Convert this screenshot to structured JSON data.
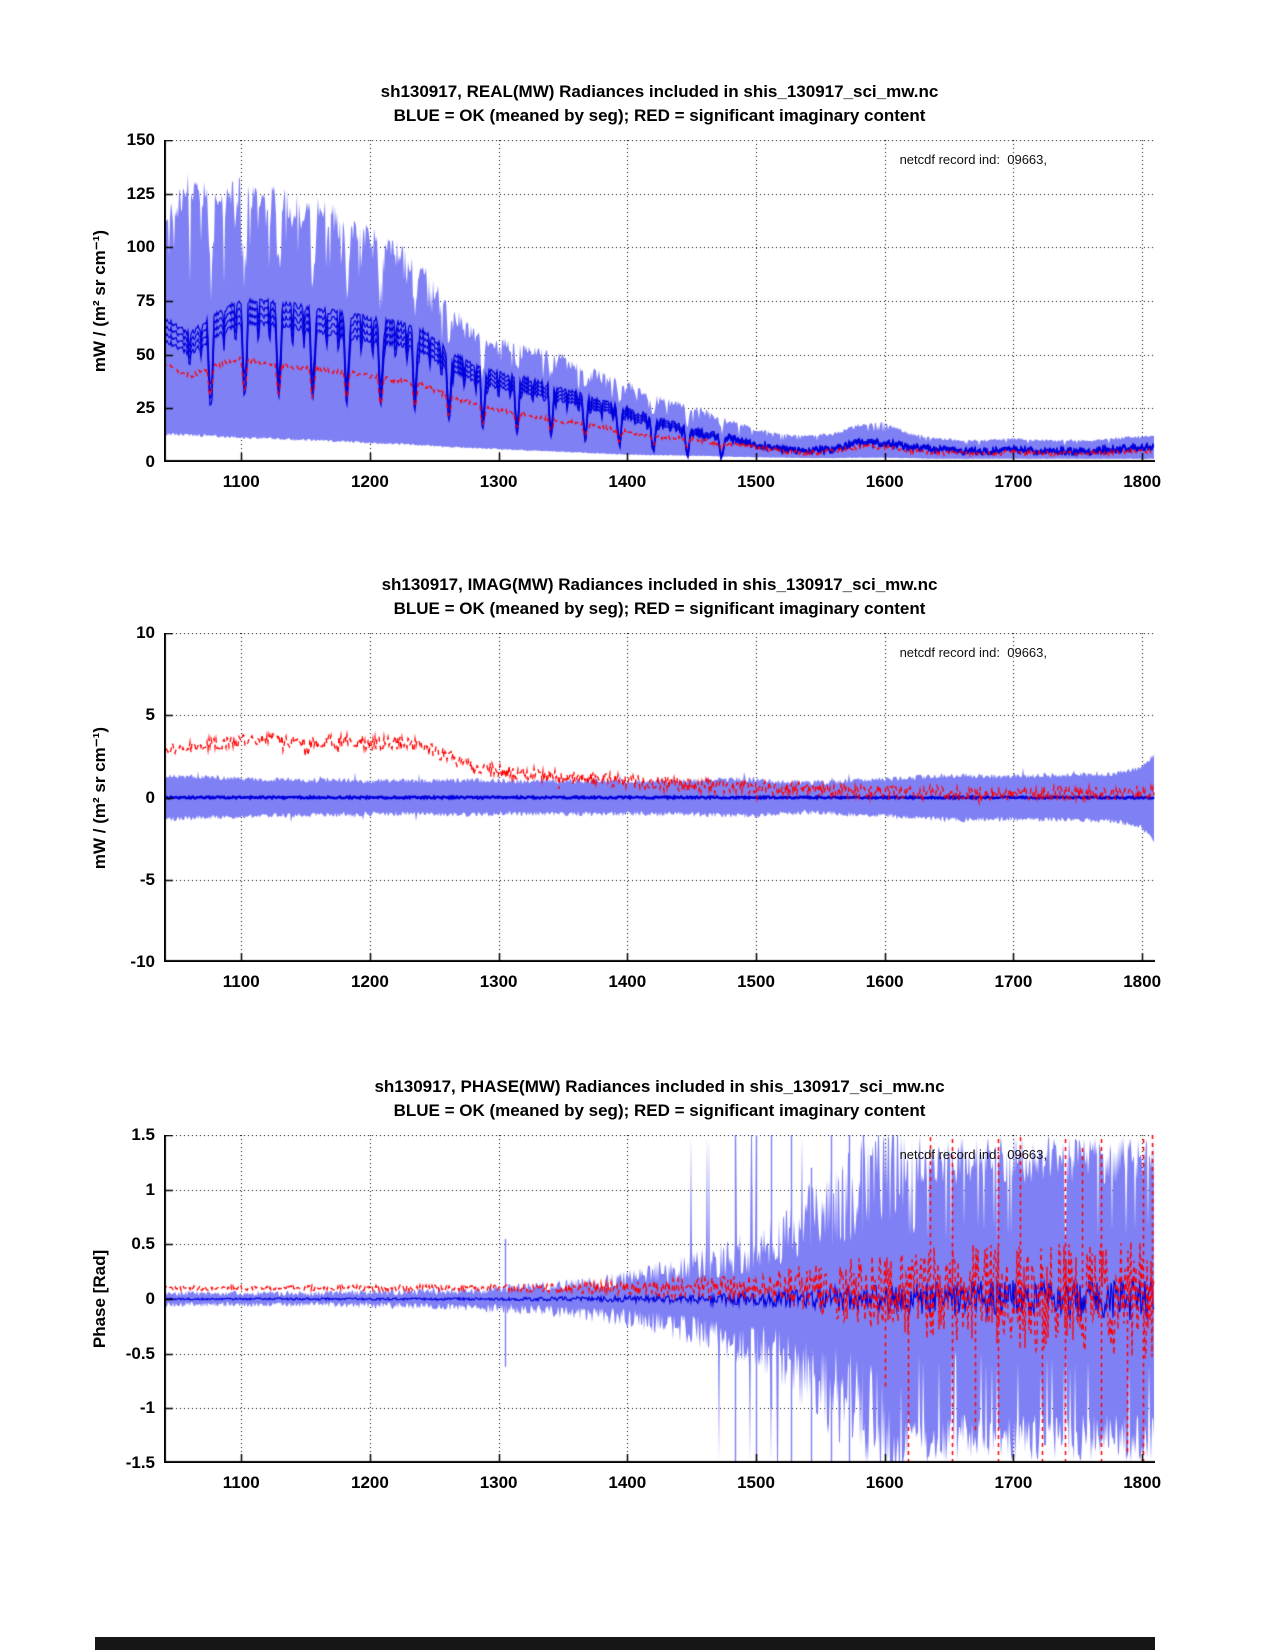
{
  "figure": {
    "background": "#ffffff",
    "colors": {
      "envelope": "#8080f5",
      "mean_line": "#0000dd",
      "flagged_line": "#ff0000",
      "axis": "#000000",
      "grid": "#000000",
      "annotation_text": "#111111"
    }
  },
  "chart_data": [
    {
      "id": "real",
      "type": "line",
      "title": "sh130917, REAL(MW) Radiances included in shis_130917_sci_mw.nc",
      "subtitle": "BLUE = OK (meaned by seg); RED = significant imaginary content",
      "annotation": "netcdf record ind:  09663,",
      "xlabel": "",
      "ylabel": "mW / (m² sr cm⁻¹)",
      "xlim": [
        1040,
        1810
      ],
      "ylim": [
        0,
        150
      ],
      "xticks": [
        1100,
        1200,
        1300,
        1400,
        1500,
        1600,
        1700,
        1800
      ],
      "xtick_labels": [
        "1100",
        "1200",
        "1300",
        "1400",
        "1500",
        "1600",
        "1700",
        "1800"
      ],
      "yticks": [
        0,
        25,
        50,
        75,
        100,
        125,
        150
      ],
      "ytick_labels": [
        "0",
        "25",
        "50",
        "75",
        "100",
        "125",
        "150"
      ],
      "grid": true,
      "legend": "none",
      "x": [
        1040,
        1060,
        1080,
        1100,
        1120,
        1140,
        1160,
        1180,
        1200,
        1220,
        1240,
        1260,
        1280,
        1300,
        1320,
        1340,
        1360,
        1380,
        1400,
        1420,
        1440,
        1460,
        1480,
        1500,
        1520,
        1540,
        1560,
        1580,
        1600,
        1620,
        1640,
        1660,
        1680,
        1700,
        1720,
        1740,
        1760,
        1780,
        1800,
        1810
      ],
      "series": [
        {
          "name": "envelope upper (OK spectra, blue)",
          "role": "envelope_upper",
          "values": [
            112,
            128,
            122,
            126,
            123,
            119,
            117,
            112,
            104,
            98,
            90,
            72,
            60,
            55,
            53,
            50,
            45,
            40,
            36,
            30,
            27,
            24,
            19,
            15,
            13,
            12,
            13,
            17,
            18,
            13,
            11,
            10,
            10,
            11,
            10,
            10,
            10,
            11,
            12,
            12
          ]
        },
        {
          "name": "envelope lower (OK spectra, blue)",
          "role": "envelope_lower",
          "values": [
            13,
            12.5,
            12,
            11.5,
            11,
            10.5,
            10,
            9.5,
            9,
            8.5,
            8,
            7,
            6.5,
            6,
            5.5,
            5,
            4.5,
            4,
            3.5,
            3.2,
            3,
            2.8,
            2.5,
            2.2,
            2,
            1.8,
            1.8,
            2,
            2,
            1.8,
            1.5,
            1.5,
            1.5,
            1.5,
            1.5,
            1.5,
            1.5,
            1.5,
            1.5,
            1.5
          ]
        },
        {
          "name": "segment means (BLUE = OK)",
          "role": "mean",
          "values": [
            62,
            55,
            64,
            70,
            70,
            68,
            66,
            64,
            62,
            60,
            57,
            48,
            42,
            38,
            36,
            33,
            30,
            26,
            23,
            19,
            16,
            13,
            11,
            8,
            6,
            5,
            6,
            9,
            9,
            7,
            6,
            5,
            5,
            6,
            5,
            5,
            5,
            6,
            7,
            7
          ]
        },
        {
          "name": "flagged spectra (RED = significant imaginary content)",
          "role": "flagged",
          "values": [
            46,
            40,
            45,
            48,
            46,
            44,
            43,
            42,
            40,
            38,
            36,
            31,
            27,
            24,
            22,
            20,
            18,
            16,
            14,
            12,
            11,
            10,
            8,
            7,
            5,
            4,
            5,
            7,
            7,
            5,
            4.5,
            4,
            4,
            4.5,
            4,
            4,
            4,
            4.5,
            5,
            5
          ]
        }
      ],
      "render": {
        "seed": 11,
        "env_noise": 0.06,
        "notches": true,
        "mean_traces": 4,
        "trace_spread": 10,
        "mean_noise": 1.3,
        "red_noise": 1.1
      }
    },
    {
      "id": "imag",
      "type": "line",
      "title": "sh130917, IMAG(MW) Radiances included in shis_130917_sci_mw.nc",
      "subtitle": "BLUE = OK (meaned by seg); RED = significant imaginary content",
      "annotation": "netcdf record ind:  09663,",
      "xlabel": "",
      "ylabel": "mW / (m² sr cm⁻¹)",
      "xlim": [
        1040,
        1810
      ],
      "ylim": [
        -10,
        10
      ],
      "xticks": [
        1100,
        1200,
        1300,
        1400,
        1500,
        1600,
        1700,
        1800
      ],
      "xtick_labels": [
        "1100",
        "1200",
        "1300",
        "1400",
        "1500",
        "1600",
        "1700",
        "1800"
      ],
      "yticks": [
        -10,
        -5,
        0,
        5,
        10
      ],
      "ytick_labels": [
        "-10",
        "-5",
        "0",
        "5",
        "10"
      ],
      "grid": true,
      "legend": "none",
      "x": [
        1040,
        1060,
        1080,
        1100,
        1120,
        1140,
        1160,
        1180,
        1200,
        1220,
        1240,
        1260,
        1280,
        1300,
        1320,
        1340,
        1360,
        1380,
        1400,
        1420,
        1440,
        1460,
        1480,
        1500,
        1520,
        1540,
        1560,
        1580,
        1600,
        1620,
        1640,
        1660,
        1680,
        1700,
        1720,
        1740,
        1760,
        1780,
        1800,
        1810
      ],
      "series": [
        {
          "name": "envelope upper (OK spectra, blue)",
          "role": "envelope_upper",
          "values": [
            1.35,
            1.25,
            1.2,
            1.15,
            1.1,
            1.1,
            1.05,
            1.05,
            1.0,
            1.0,
            1.0,
            1.05,
            1.05,
            1.0,
            1.0,
            1.0,
            1.0,
            1.0,
            1.0,
            1.0,
            1.0,
            1.05,
            1.1,
            1.1,
            0.95,
            0.9,
            0.95,
            1.05,
            1.1,
            1.2,
            1.3,
            1.35,
            1.3,
            1.3,
            1.35,
            1.35,
            1.4,
            1.45,
            1.8,
            2.6
          ]
        },
        {
          "name": "envelope lower (OK spectra, blue)",
          "role": "envelope_lower",
          "values": [
            -1.35,
            -1.25,
            -1.2,
            -1.15,
            -1.1,
            -1.1,
            -1.05,
            -1.05,
            -1.0,
            -1.0,
            -1.0,
            -1.05,
            -1.05,
            -1.0,
            -1.0,
            -1.0,
            -1.0,
            -1.0,
            -1.0,
            -1.0,
            -1.0,
            -1.05,
            -1.1,
            -1.1,
            -0.95,
            -0.9,
            -0.95,
            -1.05,
            -1.1,
            -1.2,
            -1.3,
            -1.35,
            -1.3,
            -1.3,
            -1.35,
            -1.35,
            -1.4,
            -1.45,
            -1.8,
            -2.6
          ]
        },
        {
          "name": "segment means (BLUE = OK)",
          "role": "mean",
          "values": [
            0,
            0,
            0,
            0,
            0,
            0,
            0,
            0,
            0,
            0,
            0,
            0,
            0,
            0,
            0,
            0,
            0,
            0,
            0,
            0,
            0,
            0,
            0,
            0,
            0,
            0,
            0,
            0,
            0,
            0,
            0,
            0,
            0,
            0,
            0,
            0,
            0,
            0,
            0,
            0
          ]
        },
        {
          "name": "flagged spectra (RED = significant imaginary content)",
          "role": "flagged",
          "values": [
            2.9,
            3.1,
            3.3,
            3.4,
            3.5,
            3.4,
            3.3,
            3.45,
            3.3,
            3.35,
            3.1,
            2.5,
            1.9,
            1.6,
            1.45,
            1.3,
            1.2,
            1.1,
            1.0,
            0.9,
            0.8,
            0.7,
            0.65,
            0.6,
            0.55,
            0.5,
            0.45,
            0.4,
            0.35,
            0.3,
            0.3,
            0.25,
            0.25,
            0.25,
            0.3,
            0.25,
            0.25,
            0.3,
            0.3,
            0.3
          ]
        }
      ],
      "render": {
        "seed": 22,
        "env_noise": 0.16,
        "mean_noise": 0.06,
        "red_noise": 0.42
      }
    },
    {
      "id": "phase",
      "type": "line",
      "title": "sh130917, PHASE(MW) Radiances included in shis_130917_sci_mw.nc",
      "subtitle": "BLUE = OK (meaned by seg); RED = significant imaginary content",
      "annotation": "netcdf record ind:  09663,",
      "xlabel": "",
      "ylabel": "Phase [Rad]",
      "xlim": [
        1040,
        1810
      ],
      "ylim": [
        -1.5,
        1.5
      ],
      "xticks": [
        1100,
        1200,
        1300,
        1400,
        1500,
        1600,
        1700,
        1800
      ],
      "xtick_labels": [
        "1100",
        "1200",
        "1300",
        "1400",
        "1500",
        "1600",
        "1700",
        "1800"
      ],
      "yticks": [
        -1.5,
        -1,
        -0.5,
        0,
        0.5,
        1,
        1.5
      ],
      "ytick_labels": [
        "-1.5",
        "-1",
        "-0.5",
        "0",
        "0.5",
        "1",
        "1.5"
      ],
      "grid": true,
      "legend": "none",
      "x": [
        1040,
        1060,
        1080,
        1100,
        1120,
        1140,
        1160,
        1180,
        1200,
        1220,
        1240,
        1260,
        1280,
        1300,
        1320,
        1340,
        1360,
        1380,
        1400,
        1420,
        1440,
        1460,
        1480,
        1500,
        1520,
        1540,
        1560,
        1580,
        1600,
        1620,
        1640,
        1660,
        1680,
        1700,
        1720,
        1740,
        1760,
        1780,
        1800,
        1810
      ],
      "series": [
        {
          "name": "envelope upper (OK spectra, blue)",
          "role": "envelope_upper",
          "values": [
            0.05,
            0.05,
            0.05,
            0.05,
            0.05,
            0.05,
            0.05,
            0.06,
            0.06,
            0.06,
            0.07,
            0.07,
            0.08,
            0.09,
            0.1,
            0.11,
            0.13,
            0.15,
            0.18,
            0.22,
            0.26,
            0.32,
            0.38,
            0.45,
            0.55,
            0.7,
            0.85,
            1.0,
            1.3,
            1.5,
            1.5,
            1.5,
            1.5,
            1.5,
            1.5,
            1.5,
            1.5,
            1.5,
            1.5,
            1.5
          ]
        },
        {
          "name": "envelope lower (OK spectra, blue)",
          "role": "envelope_lower",
          "values": [
            -0.05,
            -0.05,
            -0.05,
            -0.05,
            -0.05,
            -0.05,
            -0.05,
            -0.06,
            -0.06,
            -0.06,
            -0.07,
            -0.07,
            -0.08,
            -0.09,
            -0.1,
            -0.11,
            -0.13,
            -0.15,
            -0.18,
            -0.22,
            -0.26,
            -0.32,
            -0.38,
            -0.45,
            -0.55,
            -0.7,
            -0.85,
            -1.0,
            -1.3,
            -1.5,
            -1.5,
            -1.5,
            -1.5,
            -1.5,
            -1.5,
            -1.5,
            -1.5,
            -1.5,
            -1.5,
            -1.5
          ]
        },
        {
          "name": "segment means (BLUE = OK)",
          "role": "mean",
          "values": [
            0,
            0,
            0,
            0,
            0,
            0,
            0,
            0,
            0,
            0,
            0,
            0,
            0,
            0,
            0,
            0,
            0,
            0,
            0,
            0,
            0,
            0,
            0,
            0,
            0,
            0,
            0,
            0,
            0,
            0,
            0,
            0,
            0,
            0,
            0,
            0,
            0,
            0,
            0,
            0
          ]
        },
        {
          "name": "flagged spectra (RED = significant imaginary content)",
          "role": "flagged",
          "values": [
            0.1,
            0.1,
            0.1,
            0.1,
            0.1,
            0.1,
            0.1,
            0.1,
            0.1,
            0.1,
            0.1,
            0.1,
            0.1,
            0.1,
            0.1,
            0.1,
            0.1,
            0.1,
            0.1,
            0.1,
            0.1,
            0.1,
            0.1,
            0.1,
            0.1,
            0.1,
            0.08,
            0.08,
            0.05,
            0.05,
            0.05,
            0.05,
            0.05,
            0,
            0,
            0,
            0,
            0,
            0,
            0
          ]
        }
      ],
      "spikes_blue": [
        {
          "x": 1305,
          "y1": -0.62,
          "y2": 0.55
        },
        {
          "x": 1484,
          "y1": -1.5,
          "y2": 1.5
        },
        {
          "x": 1500,
          "y1": -1.5,
          "y2": 1.5
        },
        {
          "x": 1512,
          "y1": -1.0,
          "y2": 1.5
        },
        {
          "x": 1527,
          "y1": -1.5,
          "y2": 1.5
        },
        {
          "x": 1543,
          "y1": -1.5,
          "y2": 1.2
        },
        {
          "x": 1558,
          "y1": -1.5,
          "y2": 1.5
        },
        {
          "x": 1572,
          "y1": -1.5,
          "y2": 1.5
        },
        {
          "x": 1583,
          "y1": -1.2,
          "y2": 1.5
        }
      ],
      "spikes_red": [
        {
          "x": 1600,
          "y1": -0.8,
          "y2": 0.2
        },
        {
          "x": 1618,
          "y1": -1.5,
          "y2": 0.3
        },
        {
          "x": 1635,
          "y1": 0.2,
          "y2": 1.5
        },
        {
          "x": 1652,
          "y1": -1.5,
          "y2": 1.5
        },
        {
          "x": 1670,
          "y1": -1.2,
          "y2": 0.3
        },
        {
          "x": 1688,
          "y1": -1.5,
          "y2": 1.5
        },
        {
          "x": 1705,
          "y1": 0.2,
          "y2": 1.5
        },
        {
          "x": 1722,
          "y1": -1.5,
          "y2": 0.3
        },
        {
          "x": 1740,
          "y1": -1.5,
          "y2": 1.5
        },
        {
          "x": 1753,
          "y1": 0.1,
          "y2": 1.4
        },
        {
          "x": 1768,
          "y1": -1.5,
          "y2": 1.5
        },
        {
          "x": 1788,
          "y1": -1.4,
          "y2": 0.2
        },
        {
          "x": 1801,
          "y1": -1.5,
          "y2": 1.5
        },
        {
          "x": 1808,
          "y1": 0.0,
          "y2": 1.5
        }
      ],
      "render": {
        "seed": 33,
        "env_noise": 0.5,
        "noise_x": [
          1040,
          1300,
          1400,
          1500,
          1550,
          1650,
          1810
        ],
        "mean_noise_v": [
          0.008,
          0.012,
          0.03,
          0.06,
          0.1,
          0.16,
          0.2
        ],
        "red_noise_v": [
          0.02,
          0.03,
          0.06,
          0.12,
          0.25,
          0.45,
          0.55
        ],
        "dense_from": 1615,
        "spike_window": [
          1440,
          1615
        ]
      }
    }
  ]
}
